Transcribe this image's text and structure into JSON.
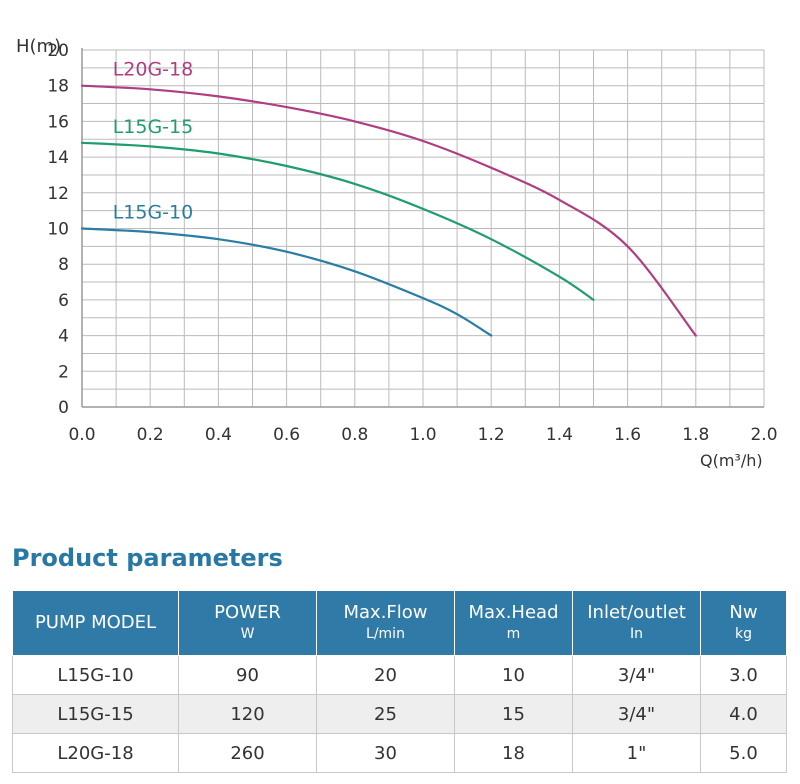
{
  "colors": {
    "grid": "#bbbbbb",
    "axis": "#999999",
    "header_bg": "#2f7aa6",
    "title": "#2878a6"
  },
  "chart_data": {
    "type": "line",
    "xlabel": "Q(m³/h)",
    "ylabel": "H(m)",
    "xlim": [
      0.0,
      2.0
    ],
    "ylim": [
      0,
      20
    ],
    "xticks": [
      "0.0",
      "0.2",
      "0.4",
      "0.6",
      "0.8",
      "1.0",
      "1.2",
      "1.4",
      "1.6",
      "1.8",
      "2.0"
    ],
    "yticks": [
      "0",
      "2",
      "4",
      "6",
      "8",
      "10",
      "12",
      "14",
      "16",
      "18",
      "20"
    ],
    "grid": true,
    "series": [
      {
        "name": "L20G-18",
        "color": "#b03d82",
        "x": [
          0.0,
          0.2,
          0.4,
          0.6,
          0.8,
          1.0,
          1.2,
          1.4,
          1.6,
          1.8
        ],
        "y": [
          18.0,
          17.8,
          17.4,
          16.8,
          16.0,
          14.9,
          13.4,
          11.6,
          9.0,
          4.0
        ]
      },
      {
        "name": "L15G-15",
        "color": "#1e9e6a",
        "x": [
          0.0,
          0.2,
          0.4,
          0.6,
          0.8,
          1.0,
          1.2,
          1.4,
          1.5
        ],
        "y": [
          14.8,
          14.6,
          14.2,
          13.5,
          12.5,
          11.1,
          9.4,
          7.3,
          6.0
        ]
      },
      {
        "name": "L15G-10",
        "color": "#2a7da3",
        "x": [
          0.0,
          0.2,
          0.4,
          0.6,
          0.8,
          1.0,
          1.1,
          1.2
        ],
        "y": [
          10.0,
          9.8,
          9.4,
          8.7,
          7.6,
          6.1,
          5.2,
          4.0
        ]
      }
    ]
  },
  "table": {
    "title": "Product parameters",
    "headers": [
      {
        "label": "PUMP MODEL",
        "unit": ""
      },
      {
        "label": "POWER",
        "unit": "W"
      },
      {
        "label": "Max.Flow",
        "unit": "L/min"
      },
      {
        "label": "Max.Head",
        "unit": "m"
      },
      {
        "label": "Inlet/outlet",
        "unit": "In"
      },
      {
        "label": "Nw",
        "unit": "kg"
      }
    ],
    "rows": [
      [
        "L15G-10",
        "90",
        "20",
        "10",
        "3/4\"",
        "3.0"
      ],
      [
        "L15G-15",
        "120",
        "25",
        "15",
        "3/4\"",
        "4.0"
      ],
      [
        "L20G-18",
        "260",
        "30",
        "18",
        "1\"",
        "5.0"
      ]
    ]
  }
}
